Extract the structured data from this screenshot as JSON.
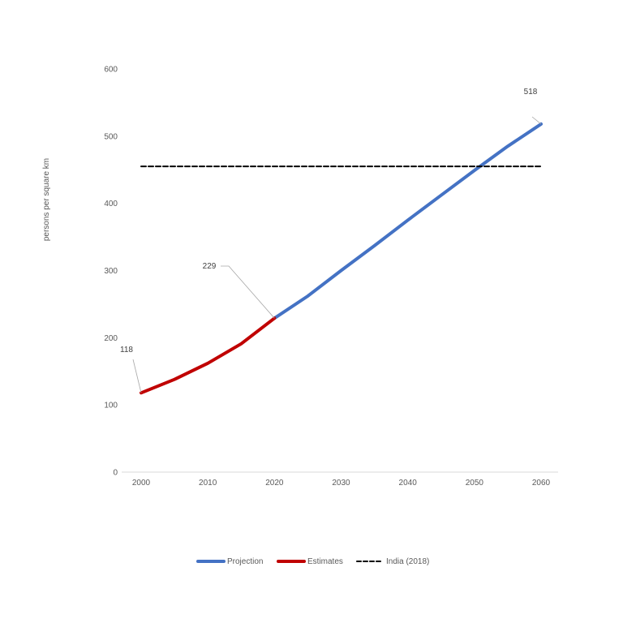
{
  "chart_data": {
    "type": "line",
    "ylabel": "persons per square km",
    "xlim": [
      2000,
      2060
    ],
    "ylim": [
      0,
      600
    ],
    "x_ticks": [
      2000,
      2010,
      2020,
      2030,
      2040,
      2050,
      2060
    ],
    "y_ticks": [
      0,
      100,
      200,
      300,
      400,
      500,
      600
    ],
    "grid": false,
    "legend_position": "bottom",
    "series": [
      {
        "name": "Projection",
        "color": "#4472C4",
        "x": [
          2020,
          2025,
          2030,
          2035,
          2040,
          2045,
          2050,
          2055,
          2060
        ],
        "values": [
          229,
          262,
          300,
          337,
          375,
          412,
          449,
          485,
          518
        ]
      },
      {
        "name": "Estimates",
        "color": "#C00000",
        "x": [
          2000,
          2005,
          2010,
          2015,
          2020
        ],
        "values": [
          118,
          138,
          162,
          191,
          229
        ]
      },
      {
        "name": "India (2018)",
        "color": "#000000",
        "style": "dashed",
        "x": [
          2000,
          2060
        ],
        "values": [
          455,
          455
        ]
      }
    ],
    "annotations": [
      {
        "text": "118",
        "x": 2000,
        "y": 118
      },
      {
        "text": "229",
        "x": 2020,
        "y": 229
      },
      {
        "text": "518",
        "x": 2060,
        "y": 518
      }
    ]
  }
}
